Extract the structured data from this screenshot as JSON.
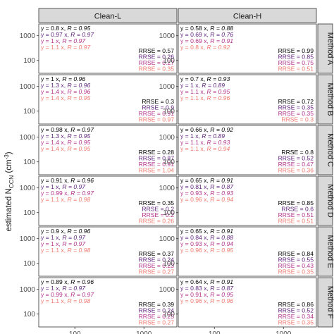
{
  "chart_data": {
    "type": "scatter",
    "ylabel": "estimated N",
    "ylabel_sub": "CCN",
    "ylabel_unit": " (cm",
    "ylabel_exp": "-3",
    "ylabel_close": ")",
    "columns": [
      "Clean-L",
      "Clean-H"
    ],
    "rows": [
      "Method A",
      "Method B",
      "Method C",
      "Method D",
      "Method E",
      "Method F"
    ],
    "x_scale": "log",
    "y_scale": "log",
    "xlim": [
      30,
      3000
    ],
    "ylim": [
      30,
      3000
    ],
    "x_ticks": [
      "100",
      "1000"
    ],
    "y_ticks": [
      "100",
      "1000"
    ],
    "series_colors": [
      "#000000",
      "#5b1f7a",
      "#b3308c",
      "#f0796e"
    ],
    "reference_lines": [
      "1:1",
      "1:2",
      "2:1"
    ],
    "panels": [
      {
        "row": "Method A",
        "col": "Clean-L",
        "eq": [
          "y = 0.8 x,",
          "y = 0.97 x,",
          "y = 1 x,",
          "y = 1.1 x,"
        ],
        "r": [
          "R = 0.95",
          "R = 0.97",
          "R = 0.97",
          "R = 0.97"
        ],
        "rrse": [
          "RRSE = 0.57",
          "RRSE = 0.26",
          "RRSE = 0.27",
          "RRSE = 0.35"
        ],
        "xrange": [
          60,
          400
        ]
      },
      {
        "row": "Method A",
        "col": "Clean-H",
        "eq": [
          "y = 0.58 x,",
          "y = 0.69 x,",
          "y = 0.69 x,",
          "y = 0.8 x,"
        ],
        "r": [
          "R = 0.88",
          "R = 0.76",
          "R = 0.91",
          "R = 0.92"
        ],
        "rrse": [
          "RRSE = 0.99",
          "RRSE = 0.85",
          "RRSE = 0.75",
          "RRSE = 0.51"
        ],
        "xrange": [
          100,
          1500
        ]
      },
      {
        "row": "Method B",
        "col": "Clean-L",
        "eq": [
          "y = 1 x,",
          "y = 1.3 x,",
          "y = 1.4 x,",
          "y = 1.4 x,"
        ],
        "r": [
          "R = 0.96",
          "R = 0.96",
          "R = 0.96",
          "R = 0.95"
        ],
        "rrse": [
          "RRSE = 0.3",
          "RRSE = 0.9",
          "RRSE = 0.91",
          "RRSE = 0.97"
        ],
        "xrange": [
          60,
          400
        ]
      },
      {
        "row": "Method B",
        "col": "Clean-H",
        "eq": [
          "y = 0.7 x,",
          "y = 1 x,",
          "y = 1.1 x,",
          "y = 1.1 x,"
        ],
        "r": [
          "R = 0.93",
          "R = 0.89",
          "R = 0.95",
          "R = 0.96"
        ],
        "rrse": [
          "RRSE = 0.72",
          "RRSE = 0.35",
          "RRSE = 0.35",
          "RRSE = 0.3"
        ],
        "xrange": [
          100,
          1500
        ]
      },
      {
        "row": "Method C",
        "col": "Clean-L",
        "eq": [
          "y = 0.98 x,",
          "y = 1.3 x,",
          "y = 1.4 x,",
          "y = 1.4 x,"
        ],
        "r": [
          "R = 0.97",
          "R = 0.95",
          "R = 0.95",
          "R = 0.95"
        ],
        "rrse": [
          "RRSE = 0.28",
          "RRSE = 0.87",
          "RRSE = 0.91",
          "RRSE = 1.04"
        ],
        "xrange": [
          60,
          400
        ]
      },
      {
        "row": "Method C",
        "col": "Clean-H",
        "eq": [
          "y = 0.66 x,",
          "y = 1 x,",
          "y = 1.1 x,",
          "y = 1.1 x,"
        ],
        "r": [
          "R = 0.92",
          "R = 0.89",
          "R = 0.93",
          "R = 0.94"
        ],
        "rrse": [
          "RRSE = 0.8",
          "RRSE = 0.52",
          "RRSE = 0.47",
          "RRSE = 0.36"
        ],
        "xrange": [
          100,
          1500
        ]
      },
      {
        "row": "Method D",
        "col": "Clean-L",
        "eq": [
          "y = 0.91 x,",
          "y = 1 x,",
          "y = 0.99 x,",
          "y = 1.1 x,"
        ],
        "r": [
          "R = 0.96",
          "R = 0.97",
          "R = 0.97",
          "R = 0.98"
        ],
        "rrse": [
          "RRSE = 0.35",
          "RRSE = 0.2",
          "RRSE = 0.2",
          "RRSE = 0.26"
        ],
        "xrange": [
          60,
          400
        ]
      },
      {
        "row": "Method D",
        "col": "Clean-H",
        "eq": [
          "y = 0.65 x,",
          "y = 0.81 x,",
          "y = 0.93 x,",
          "y = 0.96 x,"
        ],
        "r": [
          "R = 0.91",
          "R = 0.87",
          "R = 0.93",
          "R = 0.94"
        ],
        "rrse": [
          "RRSE = 0.85",
          "RRSE = 0.6",
          "RRSE = 0.51",
          "RRSE = 0.51"
        ],
        "xrange": [
          100,
          1500
        ]
      },
      {
        "row": "Method E",
        "col": "Clean-L",
        "eq": [
          "y = 0.9 x,",
          "y = 1 x,",
          "y = 1 x,",
          "y = 1.1 x,"
        ],
        "r": [
          "R = 0.96",
          "R = 0.97",
          "R = 0.97",
          "R = 0.98"
        ],
        "rrse": [
          "RRSE = 0.37",
          "RRSE = 0.24",
          "RRSE = 0.23",
          "RRSE = 0.27"
        ],
        "xrange": [
          60,
          400
        ]
      },
      {
        "row": "Method E",
        "col": "Clean-H",
        "eq": [
          "y = 0.65 x,",
          "y = 0.84 x,",
          "y = 0.93 x,",
          "y = 0.96 x,"
        ],
        "r": [
          "R = 0.91",
          "R = 0.88",
          "R = 0.94",
          "R = 0.95"
        ],
        "rrse": [
          "RRSE = 0.84",
          "RRSE = 0.55",
          "RRSE = 0.43",
          "RRSE = 0.35"
        ],
        "xrange": [
          100,
          1500
        ]
      },
      {
        "row": "Method F",
        "col": "Clean-L",
        "eq": [
          "y = 0.89 x,",
          "y = 1 x,",
          "y = 0.99 x,",
          "y = 1.1 x,"
        ],
        "r": [
          "R = 0.96",
          "R = 0.97",
          "R = 0.97",
          "R = 0.98"
        ],
        "rrse": [
          "RRSE = 0.39",
          "RRSE = 0.24",
          "RRSE = 0.25",
          "RRSE = 0.27"
        ],
        "xrange": [
          60,
          400
        ]
      },
      {
        "row": "Method F",
        "col": "Clean-H",
        "eq": [
          "y = 0.64 x,",
          "y = 0.83 x,",
          "y = 0.91 x,",
          "y = 0.96 x,"
        ],
        "r": [
          "R = 0.91",
          "R = 0.87",
          "R = 0.95",
          "R = 0.96"
        ],
        "rrse": [
          "RRSE = 0.86",
          "RRSE = 0.52",
          "RRSE = 0.34",
          "RRSE = 0.35"
        ],
        "xrange": [
          100,
          1500
        ]
      }
    ]
  }
}
